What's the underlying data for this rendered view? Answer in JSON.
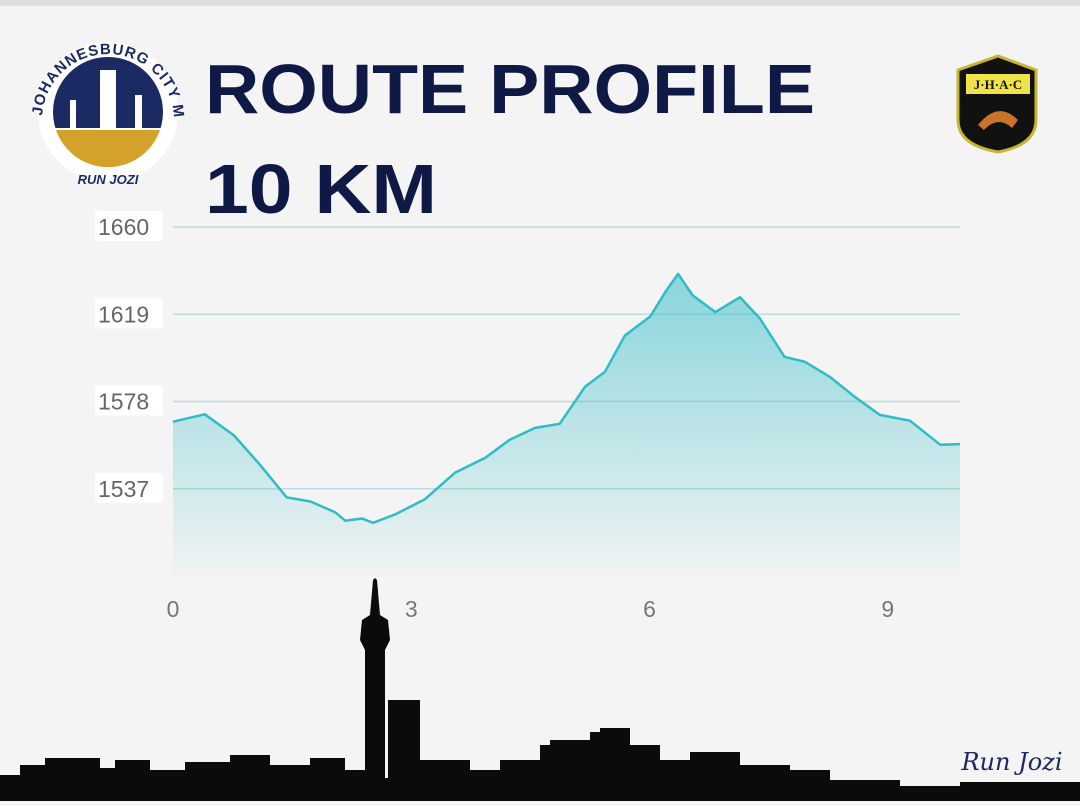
{
  "chart_data": {
    "type": "area",
    "title": "ROUTE PROFILE",
    "subtitle": "10 KM",
    "x": [
      0,
      0.4,
      0.77,
      1.1,
      1.43,
      1.73,
      2.04,
      2.17,
      2.38,
      2.52,
      2.8,
      3.17,
      3.55,
      3.93,
      4.24,
      4.56,
      4.87,
      5.19,
      5.44,
      5.69,
      6.01,
      6.2,
      6.36,
      6.54,
      6.83,
      7.14,
      7.39,
      7.7,
      7.96,
      8.27,
      8.59,
      8.9,
      9.28,
      9.66,
      9.91
    ],
    "values": [
      1568.5,
      1572,
      1562,
      1548,
      1533,
      1531,
      1526,
      1522,
      1523,
      1521,
      1525,
      1532,
      1544.5,
      1551.5,
      1560,
      1565.6,
      1567.5,
      1585,
      1592,
      1609,
      1618,
      1629.5,
      1638,
      1628,
      1620,
      1627,
      1617,
      1599,
      1596.6,
      1589.6,
      1580,
      1571.7,
      1569,
      1557.7,
      1558
    ],
    "color": "#2fbcc6",
    "xlim": [
      0,
      9.91
    ],
    "xticks": [
      0,
      3,
      6,
      9
    ],
    "ylim": [
      1496,
      1660
    ],
    "yticks": [
      1537,
      1578,
      1619,
      1660
    ],
    "grid": true
  },
  "logo": {
    "ring_text": "JOHANNESBURG CITY MARATHON",
    "inner_text": "RUN JOZI",
    "badge": "J·H·A·C"
  },
  "signature": "Run Jozi"
}
